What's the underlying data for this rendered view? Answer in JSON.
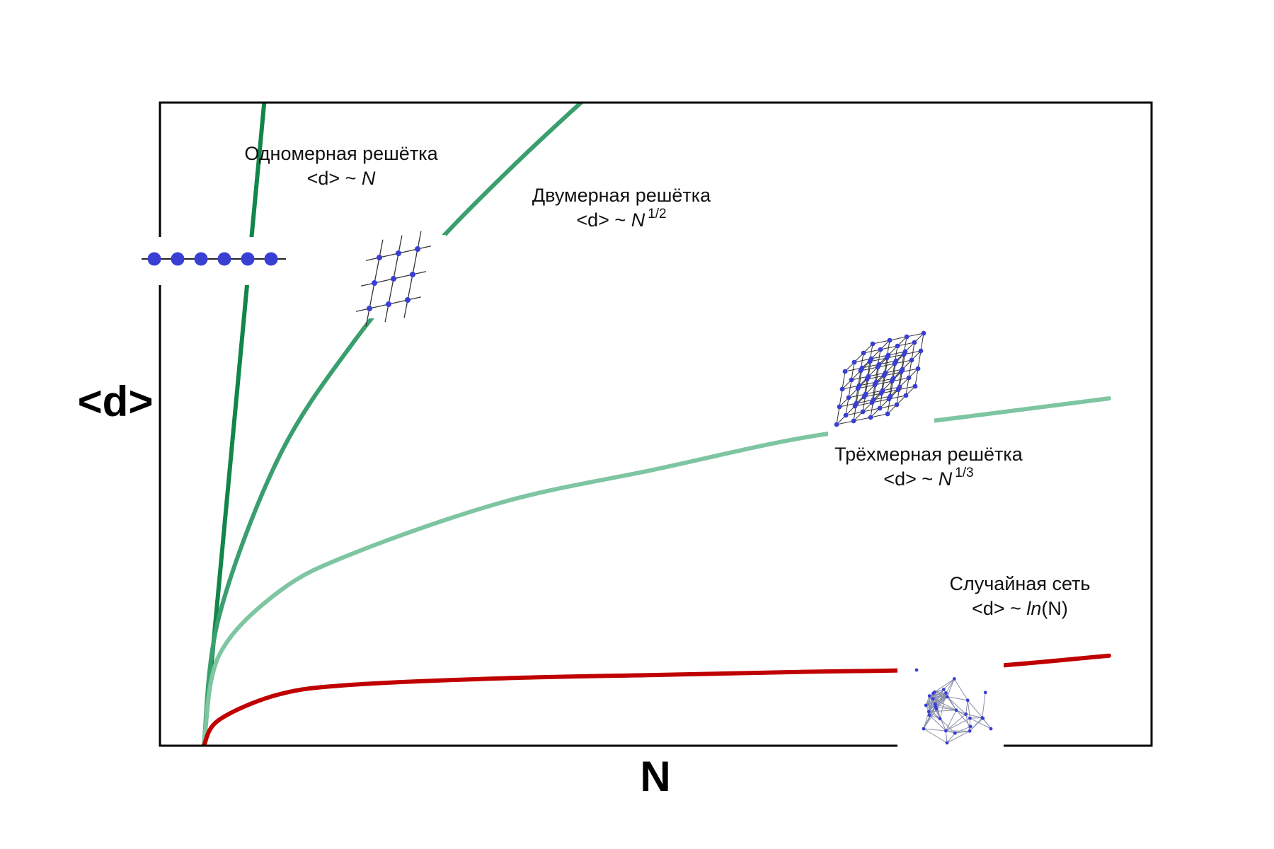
{
  "chart_data": {
    "type": "line",
    "title": "",
    "xlabel": "N",
    "ylabel": "<d>",
    "grid": false,
    "legend": "none",
    "series": [
      {
        "key": "1d",
        "label_line1": "Одномерная решётка",
        "label_line2_prefix": "<d> ~ ",
        "label_line2_var": "N",
        "label_line2_exp": "",
        "color": "#12854a",
        "points": [
          [
            0,
            0
          ],
          [
            1,
            0.25
          ],
          [
            2,
            0.5
          ],
          [
            3,
            0.75
          ],
          [
            4,
            1.0
          ],
          [
            4.06,
            1.015
          ]
        ]
      },
      {
        "key": "2d",
        "label_line1": "Двумерная решётка",
        "label_line2_prefix": "<d> ~ ",
        "label_line2_var": "N",
        "label_line2_exp": "1/2",
        "color": "#3a9f6e",
        "points": [
          [
            0,
            0
          ],
          [
            1,
            0.2
          ],
          [
            5,
            0.45
          ],
          [
            10,
            0.63
          ],
          [
            15,
            0.77
          ],
          [
            20,
            0.89
          ],
          [
            25,
            1.0
          ],
          [
            28,
            1.06
          ]
        ]
      },
      {
        "key": "3d",
        "label_line1": "Трёхмерная решётка",
        "label_line2_prefix": "<d> ~ ",
        "label_line2_var": "N",
        "label_line2_exp": "1/3",
        "color": "#7ec5a1",
        "points": [
          [
            0,
            0
          ],
          [
            1,
            0.14
          ],
          [
            5,
            0.24
          ],
          [
            10,
            0.3
          ],
          [
            20,
            0.38
          ],
          [
            30,
            0.43
          ],
          [
            40,
            0.48
          ],
          [
            50,
            0.51
          ],
          [
            60,
            0.54
          ]
        ]
      },
      {
        "key": "random",
        "label_line1": "Случайная сеть",
        "label_line2_prefix": "<d> ~ ",
        "label_line2_var": "ln",
        "label_line2_suffix": "(N)",
        "label_line2_exp": "",
        "color": "#c00000",
        "points": [
          [
            0,
            0
          ],
          [
            1,
            0.04
          ],
          [
            5,
            0.08
          ],
          [
            10,
            0.095
          ],
          [
            20,
            0.105
          ],
          [
            30,
            0.11
          ],
          [
            40,
            0.115
          ],
          [
            50,
            0.12
          ],
          [
            60,
            0.14
          ]
        ]
      }
    ],
    "xlim": [
      0,
      60
    ],
    "ylim": [
      0,
      1
    ],
    "icons": {
      "chain_color": "#3a3fd4",
      "edge_color": "#333333",
      "random_edge_color": "#8a8fa8"
    }
  }
}
